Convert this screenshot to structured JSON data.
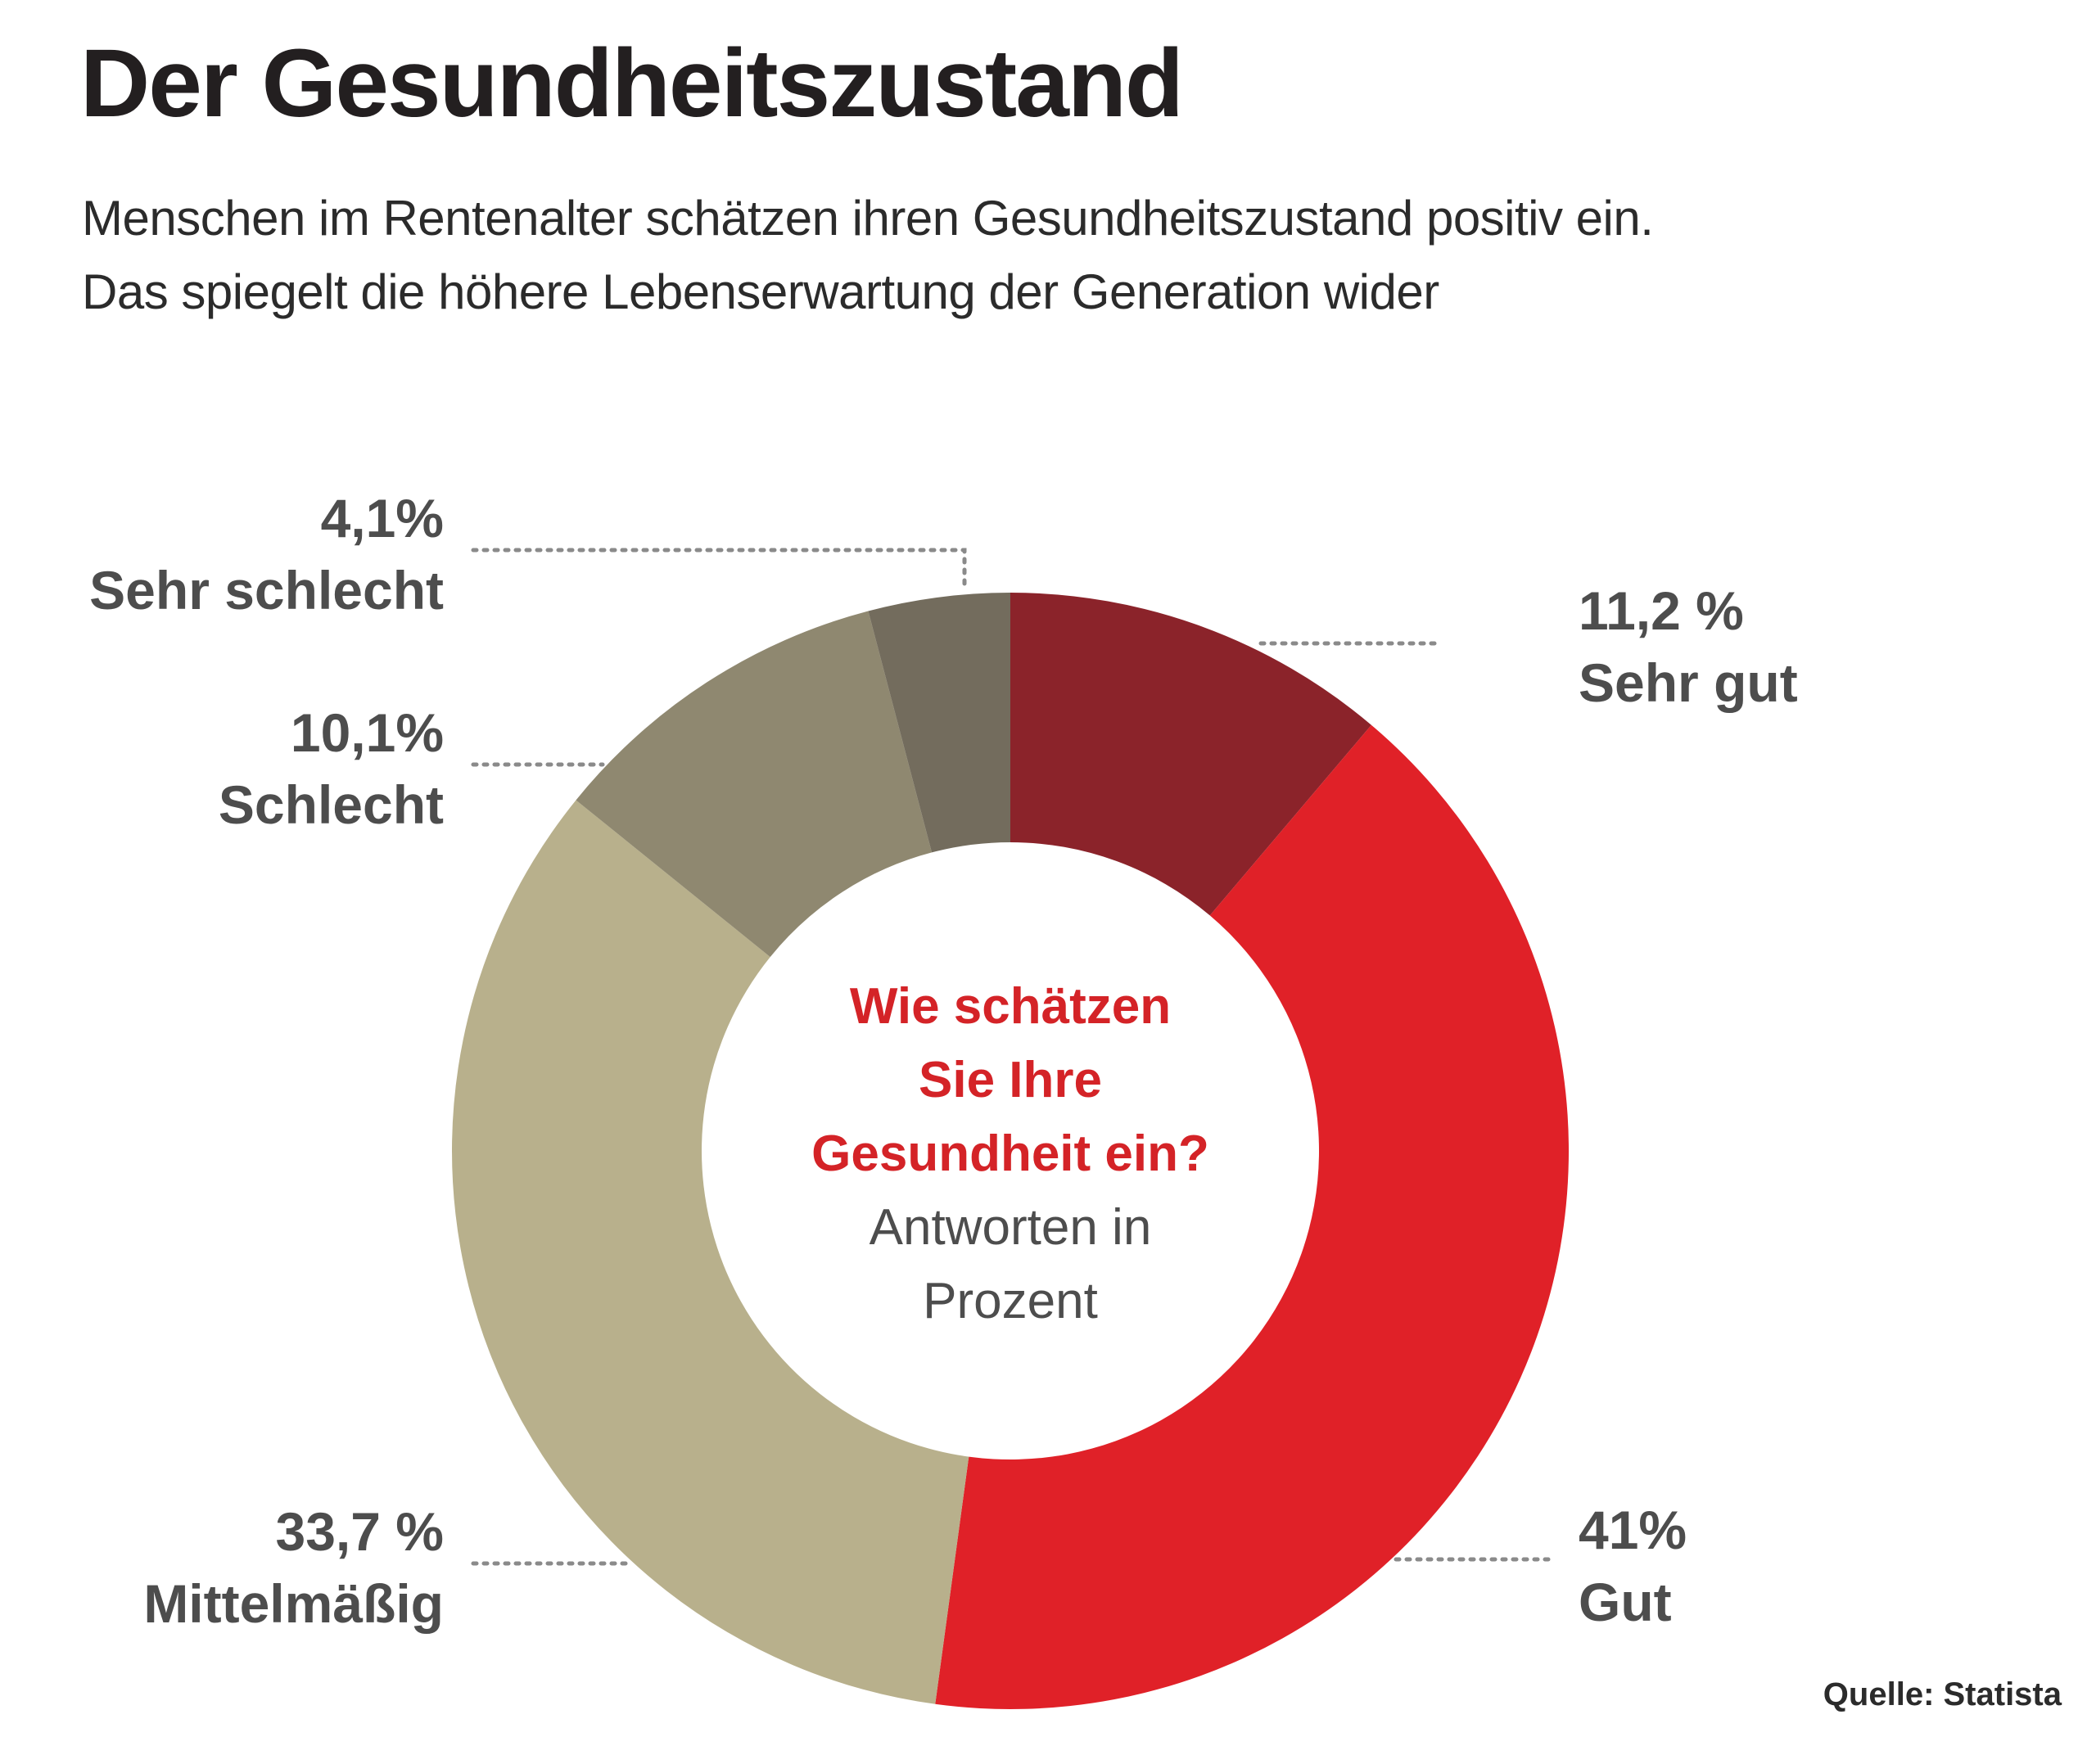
{
  "header": {
    "title": "Der Gesundheitszustand",
    "subtitle_line1": "Menschen im Rentenalter schätzen ihren Gesundheitszustand positiv ein.",
    "subtitle_line2": "Das spiegelt die höhere Lebenserwartung der Generation wider"
  },
  "center": {
    "question_line1": "Wie schätzen",
    "question_line2": "Sie Ihre",
    "question_line3": "Gesundheit ein?",
    "note_line1": "Antworten in",
    "note_line2": "Prozent"
  },
  "source": "Quelle: Statista",
  "chart_data": {
    "type": "pie",
    "variant": "donut",
    "title": "Wie schätzen Sie Ihre Gesundheit ein?",
    "unit": "Prozent",
    "start": "12 o'clock",
    "direction": "clockwise",
    "slices": [
      {
        "name": "Sehr gut",
        "value": 11.2,
        "label": "11,2 %",
        "color": "#8b232a"
      },
      {
        "name": "Gut",
        "value": 41,
        "label": "41%",
        "color": "#e02128"
      },
      {
        "name": "Mittelmäßig",
        "value": 33.7,
        "label": "33,7 %",
        "color": "#b8b08c"
      },
      {
        "name": "Schlecht",
        "value": 10.1,
        "label": "10,1%",
        "color": "#8f8870"
      },
      {
        "name": "Sehr schlecht",
        "value": 4.1,
        "label": "4,1%",
        "color": "#736c5d"
      }
    ]
  }
}
